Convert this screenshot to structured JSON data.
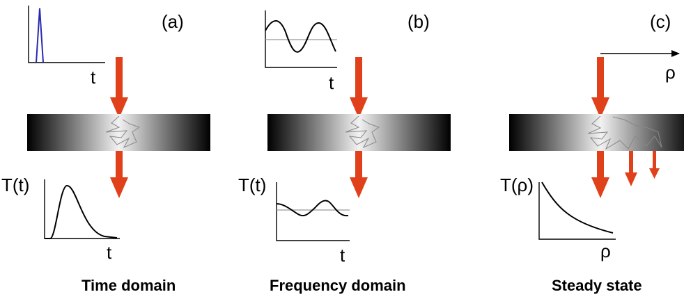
{
  "panels": [
    {
      "id": "a",
      "letter": "(a)",
      "input_axis_label": "t",
      "output_y_label": "T(t)",
      "output_x_label": "t",
      "caption": "Time domain"
    },
    {
      "id": "b",
      "letter": "(b)",
      "input_axis_label": "t",
      "output_y_label": "T(t)",
      "output_x_label": "t",
      "caption": "Frequency domain"
    },
    {
      "id": "c",
      "letter": "(c)",
      "input_axis_label": "ρ",
      "output_y_label": "T(ρ)",
      "output_x_label": "ρ",
      "caption": "Steady state"
    }
  ],
  "colors": {
    "arrow": "#e0401a",
    "pulse": "#2a2ab0",
    "curve": "#000000",
    "baseline": "#999999",
    "path": "#888888"
  }
}
